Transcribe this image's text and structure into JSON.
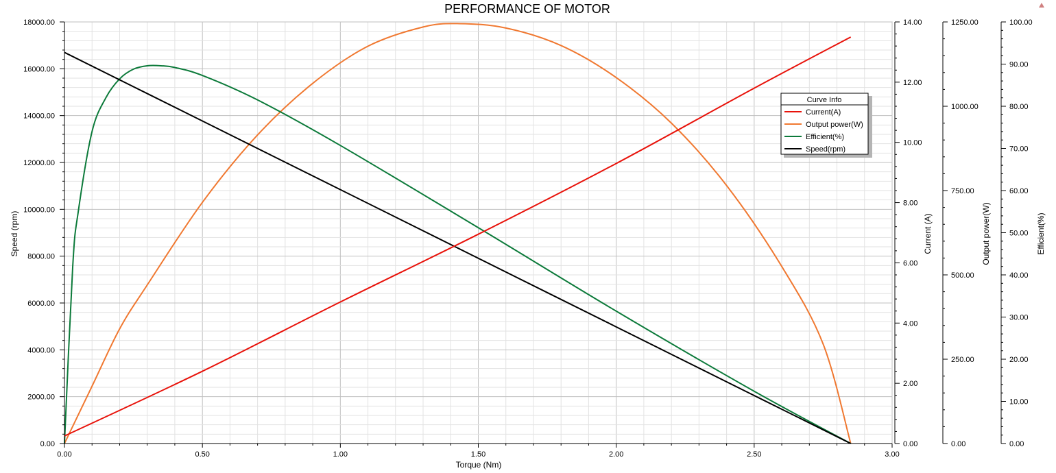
{
  "chart_data": {
    "type": "line",
    "title": "PERFORMANCE OF MOTOR",
    "xlabel": "Torque (Nm)",
    "xlim": [
      0,
      3.0
    ],
    "xticks": [
      "0.00",
      "0.50",
      "1.00",
      "1.50",
      "2.00",
      "2.50",
      "3.00"
    ],
    "grid": true,
    "legend": {
      "title": "Curve Info",
      "placement": "upper-right",
      "entries": [
        "Current(A)",
        "Output power(W)",
        "Efficient(%)",
        "Speed(rpm)"
      ]
    },
    "axes": [
      {
        "id": "speed",
        "label": "Speed (rpm)",
        "position": "left",
        "range": [
          0,
          18000
        ],
        "ticks": [
          "0.00",
          "2000.00",
          "4000.00",
          "6000.00",
          "8000.00",
          "10000.00",
          "12000.00",
          "14000.00",
          "16000.00",
          "18000.00"
        ]
      },
      {
        "id": "current",
        "label": "Current (A)",
        "position": "right",
        "range": [
          0,
          14
        ],
        "ticks": [
          "0.00",
          "2.00",
          "4.00",
          "6.00",
          "8.00",
          "10.00",
          "12.00",
          "14.00"
        ]
      },
      {
        "id": "power",
        "label": "Output power(W)",
        "position": "right",
        "range": [
          0,
          1250
        ],
        "ticks": [
          "0.00",
          "250.00",
          "500.00",
          "750.00",
          "1000.00",
          "1250.00"
        ]
      },
      {
        "id": "eff",
        "label": "Efficient(%)",
        "position": "right",
        "range": [
          0,
          100
        ],
        "ticks": [
          "0.00",
          "10.00",
          "20.00",
          "30.00",
          "40.00",
          "50.00",
          "60.00",
          "70.00",
          "80.00",
          "90.00",
          "100.00"
        ]
      }
    ],
    "series": [
      {
        "name": "Current(A)",
        "axis": "current",
        "color": "#e8120a",
        "x": [
          0,
          0.5,
          1.0,
          1.5,
          2.0,
          2.5,
          2.85
        ],
        "y": [
          0.25,
          2.4,
          4.7,
          6.95,
          9.3,
          11.8,
          13.5
        ]
      },
      {
        "name": "Output power(W)",
        "axis": "power",
        "color": "#f07830",
        "x": [
          0,
          0.1,
          0.2,
          0.3,
          0.5,
          0.7,
          0.9,
          1.1,
          1.3,
          1.43,
          1.6,
          1.8,
          2.0,
          2.2,
          2.4,
          2.6,
          2.75,
          2.85
        ],
        "y": [
          0,
          170,
          340,
          470,
          715,
          915,
          1068,
          1178,
          1235,
          1245,
          1232,
          1180,
          1085,
          950,
          765,
          525,
          295,
          0
        ]
      },
      {
        "name": "Efficient(%)",
        "axis": "eff",
        "color": "#0c7a3a",
        "x": [
          0,
          0.03,
          0.05,
          0.1,
          0.15,
          0.2,
          0.25,
          0.3,
          0.35,
          0.4,
          0.5,
          0.7,
          1.0,
          1.5,
          2.0,
          2.5,
          2.85
        ],
        "y": [
          0,
          42,
          55,
          74,
          82,
          86.5,
          88.8,
          89.6,
          89.6,
          89.2,
          87.3,
          81.5,
          70.7,
          51.2,
          31.4,
          12.4,
          0
        ]
      },
      {
        "name": "Speed(rpm)",
        "axis": "speed",
        "color": "#000000",
        "x": [
          0,
          0.5,
          1.0,
          1.5,
          2.0,
          2.5,
          2.85
        ],
        "y": [
          16700,
          13770,
          10840,
          7910,
          4980,
          2050,
          0
        ]
      }
    ]
  }
}
